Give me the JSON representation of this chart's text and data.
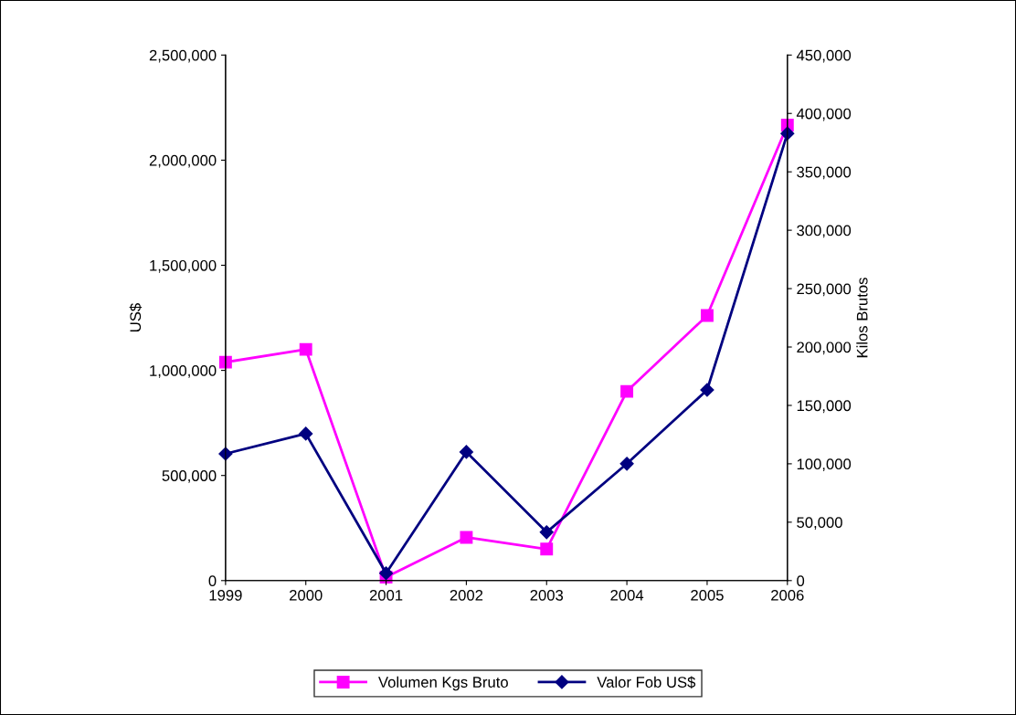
{
  "chart_data": {
    "type": "line",
    "categories": [
      "1999",
      "2000",
      "2001",
      "2002",
      "2003",
      "2004",
      "2005",
      "2006"
    ],
    "ylabel": "US$",
    "y2label": "Kilos Brutos",
    "ylim": [
      0,
      2500000
    ],
    "yticks": [
      {
        "value": 0,
        "label": "0"
      },
      {
        "value": 500000,
        "label": "500,000"
      },
      {
        "value": 1000000,
        "label": "1,000,000"
      },
      {
        "value": 1500000,
        "label": "1,500,000"
      },
      {
        "value": 2000000,
        "label": "2,000,000"
      },
      {
        "value": 2500000,
        "label": "2,500,000"
      }
    ],
    "y2lim": [
      0,
      450000
    ],
    "y2ticks": [
      {
        "value": 0,
        "label": "0"
      },
      {
        "value": 50000,
        "label": "50,000"
      },
      {
        "value": 100000,
        "label": "100,000"
      },
      {
        "value": 150000,
        "label": "150,000"
      },
      {
        "value": 200000,
        "label": "200,000"
      },
      {
        "value": 250000,
        "label": "250,000"
      },
      {
        "value": 300000,
        "label": "300,000"
      },
      {
        "value": 350000,
        "label": "350,000"
      },
      {
        "value": 400000,
        "label": "400,000"
      },
      {
        "value": 450000,
        "label": "450,000"
      }
    ],
    "grid": false,
    "legend": "bottom",
    "line_style": "solid",
    "series": [
      {
        "name": "Volumen Kgs Bruto",
        "color": "#ff00ff",
        "axis": "y2",
        "marker": "square",
        "values": [
          187000,
          198000,
          3000,
          37000,
          27000,
          162000,
          227000,
          390000
        ]
      },
      {
        "name": "Valor Fob US$",
        "color": "#000080",
        "axis": "y",
        "marker": "diamond",
        "values": [
          603000,
          699000,
          35000,
          612000,
          230000,
          556000,
          907000,
          2127000
        ]
      }
    ]
  }
}
